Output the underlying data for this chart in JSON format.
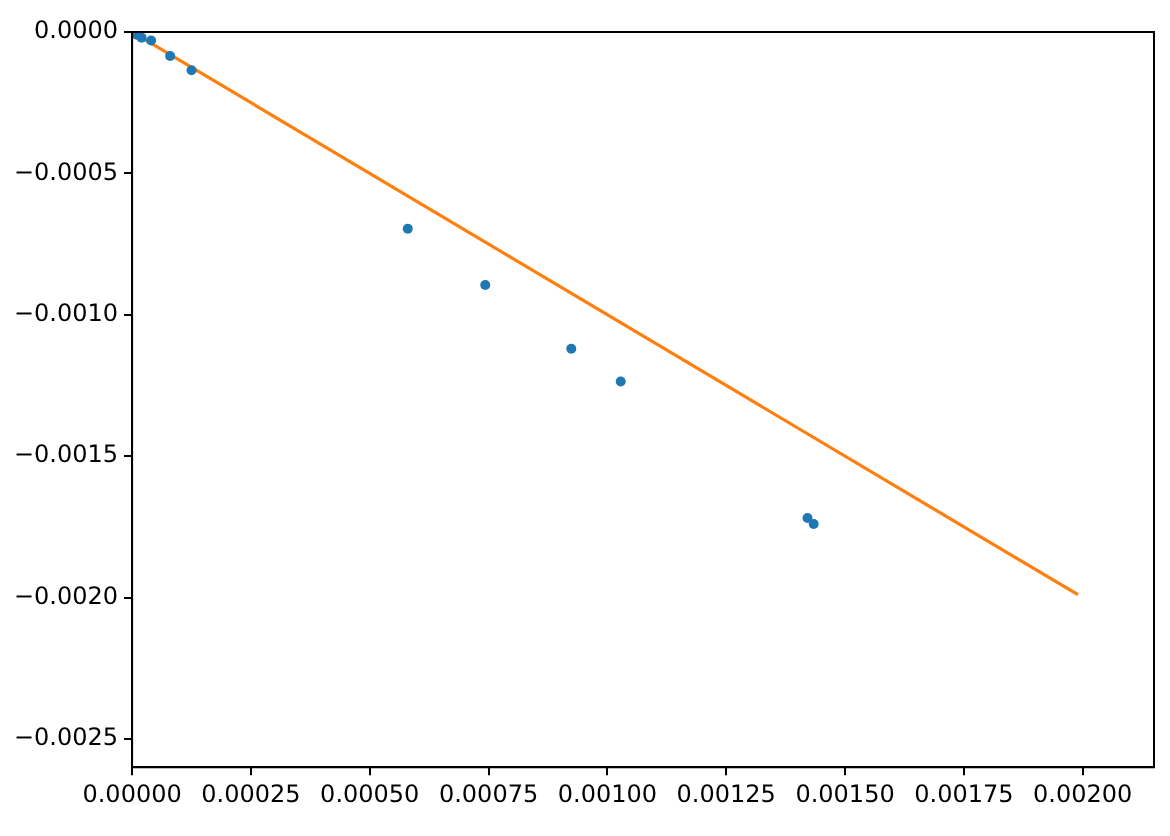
{
  "chart_data": {
    "type": "scatter",
    "series": [
      {
        "color": "#1f77b4",
        "marker": "circle",
        "x": [
          1e-05,
          2e-05,
          4e-05,
          8e-05,
          0.000125,
          0.00058,
          0.000743,
          0.000924,
          0.001028,
          0.001421,
          0.001434
        ],
        "values": [
          -1e-05,
          -2e-05,
          -3e-05,
          -8.5e-05,
          -0.000135,
          -0.000696,
          -0.000895,
          -0.00112,
          -0.001236,
          -0.001719,
          -0.00174
        ]
      },
      {
        "type": "line",
        "color": "#ff7f0e",
        "marker": "none",
        "x": [
          0,
          0.00199
        ],
        "values": [
          0,
          -0.00199
        ]
      }
    ],
    "xlim": [
      0,
      0.00215
    ],
    "ylim": [
      -0.0026,
      0
    ],
    "xticks": [
      {
        "value": 0,
        "label": "0.00000"
      },
      {
        "value": 0.00025,
        "label": "0.00025"
      },
      {
        "value": 0.0005,
        "label": "0.00050"
      },
      {
        "value": 0.00075,
        "label": "0.00075"
      },
      {
        "value": 0.001,
        "label": "0.00100"
      },
      {
        "value": 0.00125,
        "label": "0.00125"
      },
      {
        "value": 0.0015,
        "label": "0.00150"
      },
      {
        "value": 0.00175,
        "label": "0.00175"
      },
      {
        "value": 0.002,
        "label": "0.00200"
      }
    ],
    "yticks": [
      {
        "value": 0,
        "label": "0.0000"
      },
      {
        "value": -0.0005,
        "label": "−0.0005"
      },
      {
        "value": -0.001,
        "label": "−0.0010"
      },
      {
        "value": -0.0015,
        "label": "−0.0015"
      },
      {
        "value": -0.002,
        "label": "−0.0020"
      },
      {
        "value": -0.0025,
        "label": "−0.0025"
      }
    ],
    "grid": false,
    "legend": false
  }
}
